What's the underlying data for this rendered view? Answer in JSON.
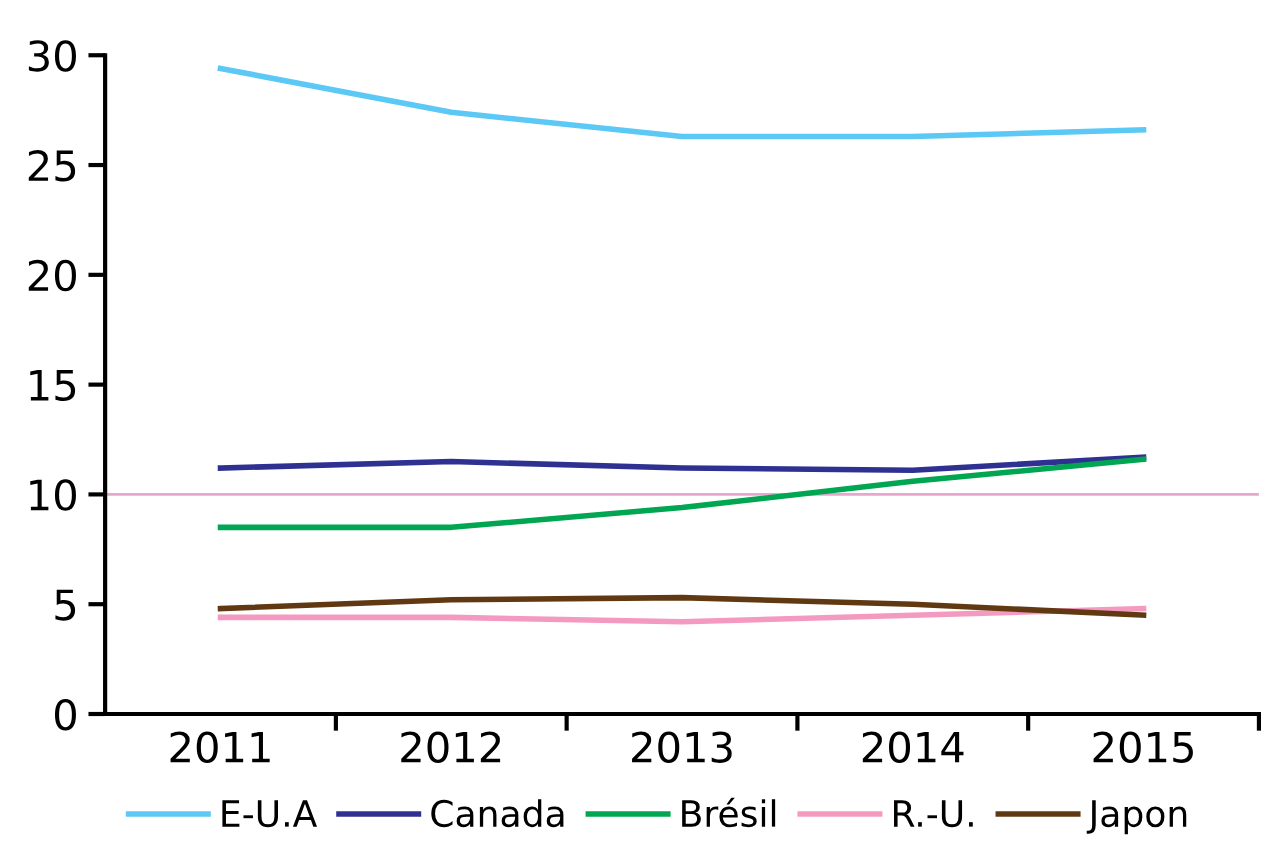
{
  "chart_data": {
    "type": "line",
    "categories": [
      "2011",
      "2012",
      "2013",
      "2014",
      "2015"
    ],
    "series": [
      {
        "name": "E-U.A",
        "color": "#5bc8f5",
        "values": [
          29.4,
          27.4,
          26.3,
          26.3,
          26.6
        ]
      },
      {
        "name": "Canada",
        "color": "#2e3192",
        "values": [
          11.2,
          11.5,
          11.2,
          11.1,
          11.7
        ]
      },
      {
        "name": "Brésil",
        "color": "#00a651",
        "values": [
          8.5,
          8.5,
          9.4,
          10.6,
          11.6
        ]
      },
      {
        "name": "R.-U.",
        "color": "#f49ac1",
        "values": [
          4.4,
          4.4,
          4.2,
          4.5,
          4.8
        ]
      },
      {
        "name": "Japon",
        "color": "#603913",
        "values": [
          4.8,
          5.2,
          5.3,
          5.0,
          4.5
        ]
      }
    ],
    "ylim": [
      0,
      30
    ],
    "yticks": [
      0,
      5,
      10,
      15,
      20,
      25,
      30
    ],
    "ref_lines": [
      {
        "axis": "y",
        "value": 10,
        "color": "#e8a6cf"
      }
    ],
    "grid": false,
    "legend": "bottom",
    "marker": "none",
    "line_style": "solid"
  }
}
